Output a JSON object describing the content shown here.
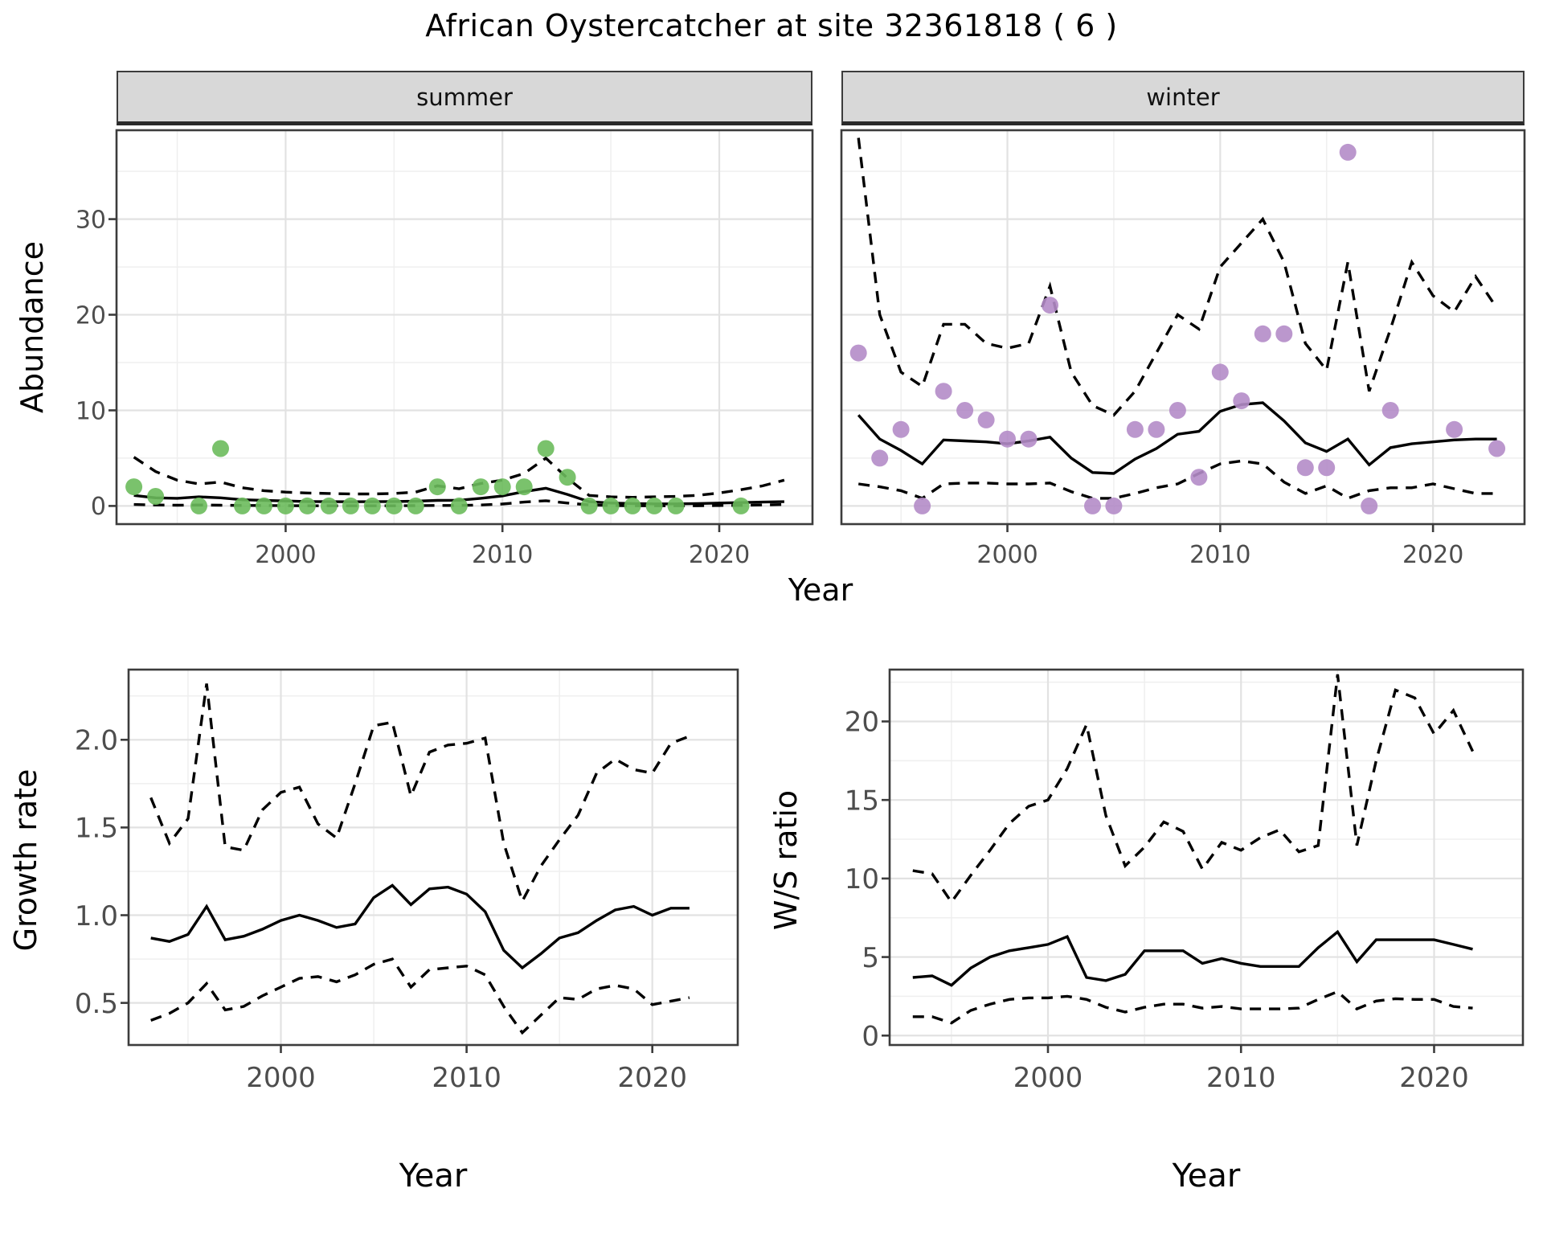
{
  "title": "African Oystercatcher at site 32361818 ( 6 )",
  "facets": {
    "summer": "summer",
    "winter": "winter"
  },
  "axes": {
    "abundance_label": "Abundance",
    "growth_label": "Growth rate",
    "ws_label": "W/S ratio",
    "year_label": "Year"
  },
  "colors": {
    "summer_point": "#6cbb5c",
    "winter_point": "#b48cc8",
    "line": "#000000",
    "panel_border": "#3c3c3c",
    "strip_bg": "#d8d8d8",
    "grid_major": "#e2e2e2",
    "grid_minor": "#efefef",
    "tick_text": "#4d4d4d"
  },
  "chart_data": [
    {
      "id": "summer",
      "type": "scatter",
      "facet": "summer",
      "title": "Abundance — summer facet",
      "xlabel": "Year",
      "ylabel": "Abundance",
      "xlim": [
        1992.2,
        2024.3
      ],
      "ylim": [
        -1.9,
        39.3
      ],
      "x_ticks": [
        2000,
        2010,
        2020
      ],
      "x_tick_labels": [
        "2000",
        "2010",
        "2020"
      ],
      "y_ticks": [
        0,
        10,
        20,
        30
      ],
      "y_tick_labels": [
        "0",
        "10",
        "20",
        "30"
      ],
      "grid": true,
      "points": {
        "x": [
          1993,
          1994,
          1996,
          1997,
          1998,
          1999,
          2000,
          2001,
          2002,
          2003,
          2004,
          2005,
          2006,
          2007,
          2008,
          2009,
          2010,
          2011,
          2012,
          2013,
          2014,
          2015,
          2016,
          2017,
          2018,
          2021
        ],
        "y": [
          2,
          1,
          0,
          6,
          0,
          0,
          0,
          0,
          0,
          0,
          0,
          0,
          0,
          2,
          0,
          2,
          2,
          2,
          6,
          3,
          0,
          0,
          0,
          0,
          0,
          0
        ]
      },
      "series": [
        {
          "name": "fit",
          "style": "solid",
          "x": [
            1993,
            1994,
            1995,
            1996,
            1997,
            1998,
            1999,
            2000,
            2001,
            2002,
            2003,
            2004,
            2005,
            2006,
            2007,
            2008,
            2009,
            2010,
            2011,
            2012,
            2013,
            2014,
            2015,
            2016,
            2017,
            2018,
            2019,
            2020,
            2021,
            2022,
            2023
          ],
          "y": [
            1.1,
            0.85,
            0.8,
            0.95,
            0.85,
            0.65,
            0.58,
            0.52,
            0.46,
            0.45,
            0.44,
            0.45,
            0.46,
            0.5,
            0.58,
            0.6,
            0.8,
            1.05,
            1.5,
            1.85,
            1.2,
            0.45,
            0.3,
            0.25,
            0.22,
            0.22,
            0.25,
            0.3,
            0.35,
            0.4,
            0.45
          ]
        },
        {
          "name": "upper_ci",
          "style": "dashed",
          "x": [
            1993,
            1994,
            1995,
            1996,
            1997,
            1998,
            1999,
            2000,
            2001,
            2002,
            2003,
            2004,
            2005,
            2006,
            2007,
            2008,
            2009,
            2010,
            2011,
            2012,
            2013,
            2014,
            2015,
            2016,
            2017,
            2018,
            2019,
            2020,
            2021,
            2022,
            2023
          ],
          "y": [
            5.1,
            3.6,
            2.7,
            2.3,
            2.5,
            1.9,
            1.6,
            1.45,
            1.35,
            1.3,
            1.25,
            1.25,
            1.3,
            1.45,
            2.1,
            1.8,
            2.35,
            2.7,
            3.4,
            5.0,
            2.9,
            1.1,
            0.95,
            0.9,
            0.95,
            1.0,
            1.1,
            1.35,
            1.7,
            2.1,
            2.7
          ]
        },
        {
          "name": "lower_ci",
          "style": "dashed",
          "x": [
            1993,
            1994,
            1995,
            1996,
            1997,
            1998,
            1999,
            2000,
            2001,
            2002,
            2003,
            2004,
            2005,
            2006,
            2007,
            2008,
            2009,
            2010,
            2011,
            2012,
            2013,
            2014,
            2015,
            2016,
            2017,
            2018,
            2019,
            2020,
            2021,
            2022,
            2023
          ],
          "y": [
            0.15,
            0.1,
            0.08,
            0.1,
            0.08,
            0.05,
            0.04,
            0.03,
            0.02,
            0.02,
            0.02,
            0.02,
            0.02,
            0.03,
            0.05,
            0.05,
            0.1,
            0.2,
            0.4,
            0.55,
            0.3,
            0.1,
            0.04,
            0.02,
            0.02,
            0.02,
            0.02,
            0.04,
            0.06,
            0.1,
            0.15
          ]
        }
      ],
      "point_color": "#6cbb5c"
    },
    {
      "id": "winter",
      "type": "scatter",
      "facet": "winter",
      "title": "Abundance — winter facet",
      "xlabel": "Year",
      "ylabel": "Abundance",
      "xlim": [
        1992.2,
        2024.3
      ],
      "ylim": [
        -1.9,
        39.3
      ],
      "x_ticks": [
        2000,
        2010,
        2020
      ],
      "x_tick_labels": [
        "2000",
        "2010",
        "2020"
      ],
      "y_ticks": [
        0,
        10,
        20,
        30
      ],
      "y_tick_labels": [
        "0",
        "10",
        "20",
        "30"
      ],
      "grid": true,
      "points": {
        "x": [
          1993,
          1994,
          1995,
          1996,
          1997,
          1998,
          1999,
          2000,
          2001,
          2002,
          2004,
          2005,
          2006,
          2007,
          2008,
          2009,
          2010,
          2011,
          2012,
          2013,
          2014,
          2015,
          2016,
          2017,
          2018,
          2021,
          2023
        ],
        "y": [
          16,
          5,
          8,
          0,
          12,
          10,
          9,
          7,
          7,
          21,
          0,
          0,
          8,
          8,
          10,
          3,
          14,
          11,
          18,
          18,
          4,
          4,
          37,
          0,
          10,
          8,
          6
        ]
      },
      "series": [
        {
          "name": "fit",
          "style": "solid",
          "x": [
            1993,
            1994,
            1995,
            1996,
            1997,
            1998,
            1999,
            2000,
            2001,
            2002,
            2003,
            2004,
            2005,
            2006,
            2007,
            2008,
            2009,
            2010,
            2011,
            2012,
            2013,
            2014,
            2015,
            2016,
            2017,
            2018,
            2019,
            2020,
            2021,
            2022,
            2023
          ],
          "y": [
            9.5,
            7.0,
            5.8,
            4.4,
            6.9,
            6.8,
            6.7,
            6.5,
            6.8,
            7.2,
            5.0,
            3.5,
            3.4,
            4.9,
            6.0,
            7.5,
            7.8,
            9.9,
            10.6,
            10.8,
            8.9,
            6.6,
            5.7,
            7.0,
            4.3,
            6.1,
            6.5,
            6.7,
            6.9,
            7.0,
            7.0
          ]
        },
        {
          "name": "upper_ci",
          "style": "dashed",
          "x": [
            1993,
            1994,
            1995,
            1996,
            1997,
            1998,
            1999,
            2000,
            2001,
            2002,
            2003,
            2004,
            2005,
            2006,
            2007,
            2008,
            2009,
            2010,
            2011,
            2012,
            2013,
            2014,
            2015,
            2016,
            2017,
            2018,
            2019,
            2020,
            2021,
            2022,
            2023
          ],
          "y": [
            38.5,
            20,
            14,
            12.5,
            19,
            19,
            17,
            16.5,
            17,
            23,
            14,
            10.5,
            9.5,
            12,
            16,
            20,
            18.5,
            25,
            27.5,
            30,
            25.5,
            17,
            14.2,
            25.5,
            12,
            18.5,
            25.5,
            22,
            20.3,
            24,
            20.7
          ]
        },
        {
          "name": "lower_ci",
          "style": "dashed",
          "x": [
            1993,
            1994,
            1995,
            1996,
            1997,
            1998,
            1999,
            2000,
            2001,
            2002,
            2003,
            2004,
            2005,
            2006,
            2007,
            2008,
            2009,
            2010,
            2011,
            2012,
            2013,
            2014,
            2015,
            2016,
            2017,
            2018,
            2019,
            2020,
            2021,
            2022,
            2023
          ],
          "y": [
            2.3,
            2.0,
            1.6,
            0.8,
            2.3,
            2.4,
            2.4,
            2.3,
            2.3,
            2.4,
            1.5,
            0.8,
            0.8,
            1.3,
            1.9,
            2.3,
            3.4,
            4.4,
            4.7,
            4.4,
            2.5,
            1.3,
            2.1,
            0.8,
            1.6,
            1.9,
            1.9,
            2.3,
            1.8,
            1.3,
            1.3
          ]
        }
      ],
      "point_color": "#b48cc8"
    },
    {
      "id": "growth",
      "type": "line",
      "title": "Growth rate",
      "xlabel": "Year",
      "ylabel": "Growth rate",
      "xlim": [
        1991.8,
        2024.6
      ],
      "ylim": [
        0.26,
        2.4
      ],
      "x_ticks": [
        2000,
        2010,
        2020
      ],
      "x_tick_labels": [
        "2000",
        "2010",
        "2020"
      ],
      "y_ticks": [
        0.5,
        1.0,
        1.5,
        2.0
      ],
      "y_tick_labels": [
        "0.5",
        "1.0",
        "1.5",
        "2.0"
      ],
      "grid": true,
      "series": [
        {
          "name": "fit",
          "style": "solid",
          "x": [
            1993,
            1994,
            1995,
            1996,
            1997,
            1998,
            1999,
            2000,
            2001,
            2002,
            2003,
            2004,
            2005,
            2006,
            2007,
            2008,
            2009,
            2010,
            2011,
            2012,
            2013,
            2014,
            2015,
            2016,
            2017,
            2018,
            2019,
            2020,
            2021,
            2022
          ],
          "y": [
            0.87,
            0.85,
            0.89,
            1.05,
            0.86,
            0.88,
            0.92,
            0.97,
            1.0,
            0.97,
            0.93,
            0.95,
            1.1,
            1.17,
            1.06,
            1.15,
            1.16,
            1.12,
            1.02,
            0.8,
            0.7,
            0.78,
            0.87,
            0.9,
            0.97,
            1.03,
            1.05,
            1.0,
            1.04,
            1.04
          ]
        },
        {
          "name": "upper_ci",
          "style": "dashed",
          "x": [
            1993,
            1994,
            1995,
            1996,
            1997,
            1998,
            1999,
            2000,
            2001,
            2002,
            2003,
            2004,
            2005,
            2006,
            2007,
            2008,
            2009,
            2010,
            2011,
            2012,
            2013,
            2014,
            2015,
            2016,
            2017,
            2018,
            2019,
            2020,
            2021,
            2022
          ],
          "y": [
            1.67,
            1.41,
            1.55,
            2.32,
            1.39,
            1.37,
            1.6,
            1.7,
            1.73,
            1.52,
            1.44,
            1.75,
            2.08,
            2.1,
            1.68,
            1.93,
            1.97,
            1.98,
            2.01,
            1.41,
            1.08,
            1.28,
            1.43,
            1.57,
            1.81,
            1.89,
            1.83,
            1.81,
            1.98,
            2.02
          ]
        },
        {
          "name": "lower_ci",
          "style": "dashed",
          "x": [
            1993,
            1994,
            1995,
            1996,
            1997,
            1998,
            1999,
            2000,
            2001,
            2002,
            2003,
            2004,
            2005,
            2006,
            2007,
            2008,
            2009,
            2010,
            2011,
            2012,
            2013,
            2014,
            2015,
            2016,
            2017,
            2018,
            2019,
            2020,
            2021,
            2022
          ],
          "y": [
            0.4,
            0.44,
            0.5,
            0.61,
            0.46,
            0.48,
            0.54,
            0.59,
            0.64,
            0.65,
            0.62,
            0.66,
            0.72,
            0.75,
            0.59,
            0.69,
            0.7,
            0.71,
            0.66,
            0.48,
            0.33,
            0.43,
            0.53,
            0.52,
            0.58,
            0.6,
            0.58,
            0.49,
            0.51,
            0.53
          ]
        }
      ]
    },
    {
      "id": "ws",
      "type": "line",
      "title": "W/S ratio",
      "xlabel": "Year",
      "ylabel": "W/S ratio",
      "xlim": [
        1991.8,
        2024.6
      ],
      "ylim": [
        -0.6,
        23.3
      ],
      "x_ticks": [
        2000,
        2010,
        2020
      ],
      "x_tick_labels": [
        "2000",
        "2010",
        "2020"
      ],
      "y_ticks": [
        0,
        5,
        10,
        15,
        20
      ],
      "y_tick_labels": [
        "0",
        "5",
        "10",
        "15",
        "20"
      ],
      "grid": true,
      "series": [
        {
          "name": "fit",
          "style": "solid",
          "x": [
            1993,
            1994,
            1995,
            1996,
            1997,
            1998,
            1999,
            2000,
            2001,
            2002,
            2003,
            2004,
            2005,
            2006,
            2007,
            2008,
            2009,
            2010,
            2011,
            2012,
            2013,
            2014,
            2015,
            2016,
            2017,
            2018,
            2019,
            2020,
            2021,
            2022
          ],
          "y": [
            3.7,
            3.8,
            3.2,
            4.3,
            5.0,
            5.4,
            5.6,
            5.8,
            6.3,
            3.7,
            3.5,
            3.9,
            5.4,
            5.4,
            5.4,
            4.6,
            4.9,
            4.6,
            4.4,
            4.4,
            4.4,
            5.6,
            6.6,
            4.7,
            6.1,
            6.1,
            6.1,
            6.1,
            5.8,
            5.5
          ]
        },
        {
          "name": "upper_ci",
          "style": "dashed",
          "x": [
            1993,
            1994,
            1995,
            1996,
            1997,
            1998,
            1999,
            2000,
            2001,
            2002,
            2003,
            2004,
            2005,
            2006,
            2007,
            2008,
            2009,
            2010,
            2011,
            2012,
            2013,
            2014,
            2015,
            2016,
            2017,
            2018,
            2019,
            2020,
            2021,
            2022
          ],
          "y": [
            10.5,
            10.3,
            8.5,
            10.2,
            11.8,
            13.5,
            14.6,
            15.0,
            17.0,
            19.8,
            14.0,
            10.8,
            12.0,
            13.6,
            13.0,
            10.6,
            12.3,
            11.8,
            12.6,
            13.1,
            11.7,
            12.1,
            23.0,
            12.1,
            17.5,
            22.0,
            21.5,
            19.2,
            20.7,
            18.1
          ]
        },
        {
          "name": "lower_ci",
          "style": "dashed",
          "x": [
            1993,
            1994,
            1995,
            1996,
            1997,
            1998,
            1999,
            2000,
            2001,
            2002,
            2003,
            2004,
            2005,
            2006,
            2007,
            2008,
            2009,
            2010,
            2011,
            2012,
            2013,
            2014,
            2015,
            2016,
            2017,
            2018,
            2019,
            2020,
            2021,
            2022
          ],
          "y": [
            1.2,
            1.2,
            0.8,
            1.6,
            2.0,
            2.3,
            2.4,
            2.4,
            2.5,
            2.3,
            1.8,
            1.5,
            1.8,
            2.0,
            2.0,
            1.75,
            1.85,
            1.7,
            1.7,
            1.7,
            1.75,
            2.3,
            2.8,
            1.7,
            2.2,
            2.35,
            2.3,
            2.3,
            1.85,
            1.75
          ]
        }
      ]
    }
  ]
}
